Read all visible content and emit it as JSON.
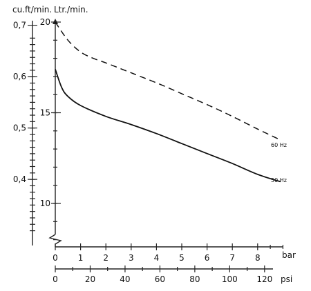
{
  "chart_data": {
    "type": "line",
    "left_axis": {
      "label": "cu.ft/min.",
      "ticks": [
        {
          "value": 0.4,
          "label": "0,4"
        },
        {
          "value": 0.5,
          "label": "0,5"
        },
        {
          "value": 0.6,
          "label": "0,6"
        },
        {
          "value": 0.7,
          "label": "0,7"
        }
      ]
    },
    "right_axis": {
      "label": "Ltr./min.",
      "range": [
        7,
        20
      ],
      "ticks": [
        {
          "value": 10,
          "label": "10"
        },
        {
          "value": 15,
          "label": "15"
        },
        {
          "value": 20,
          "label": "20"
        }
      ]
    },
    "x_axis_bar": {
      "label": "bar",
      "range": [
        0,
        9
      ],
      "ticks": [
        "0",
        "1",
        "2",
        "3",
        "4",
        "5",
        "6",
        "7",
        "8"
      ]
    },
    "x_axis_psi": {
      "label": "psi",
      "ticks": [
        "0",
        "20",
        "40",
        "60",
        "80",
        "100",
        "120"
      ]
    },
    "series": [
      {
        "name": "60 Hz",
        "style": "dashed",
        "points": [
          [
            0,
            20.0
          ],
          [
            0.5,
            19.0
          ],
          [
            1,
            18.35
          ],
          [
            1.5,
            18.0
          ],
          [
            2,
            17.75
          ],
          [
            3,
            17.2
          ],
          [
            4,
            16.65
          ],
          [
            5,
            16.05
          ],
          [
            6,
            15.45
          ],
          [
            7,
            14.8
          ],
          [
            8,
            14.1
          ],
          [
            8.9,
            13.5
          ]
        ]
      },
      {
        "name": "50 Hz",
        "style": "solid",
        "points": [
          [
            0,
            17.4
          ],
          [
            0.25,
            16.4
          ],
          [
            0.5,
            15.9
          ],
          [
            1,
            15.4
          ],
          [
            2,
            14.8
          ],
          [
            3,
            14.35
          ],
          [
            4,
            13.85
          ],
          [
            5,
            13.3
          ],
          [
            6,
            12.75
          ],
          [
            7,
            12.2
          ],
          [
            8,
            11.6
          ],
          [
            8.9,
            11.2
          ]
        ]
      }
    ]
  }
}
